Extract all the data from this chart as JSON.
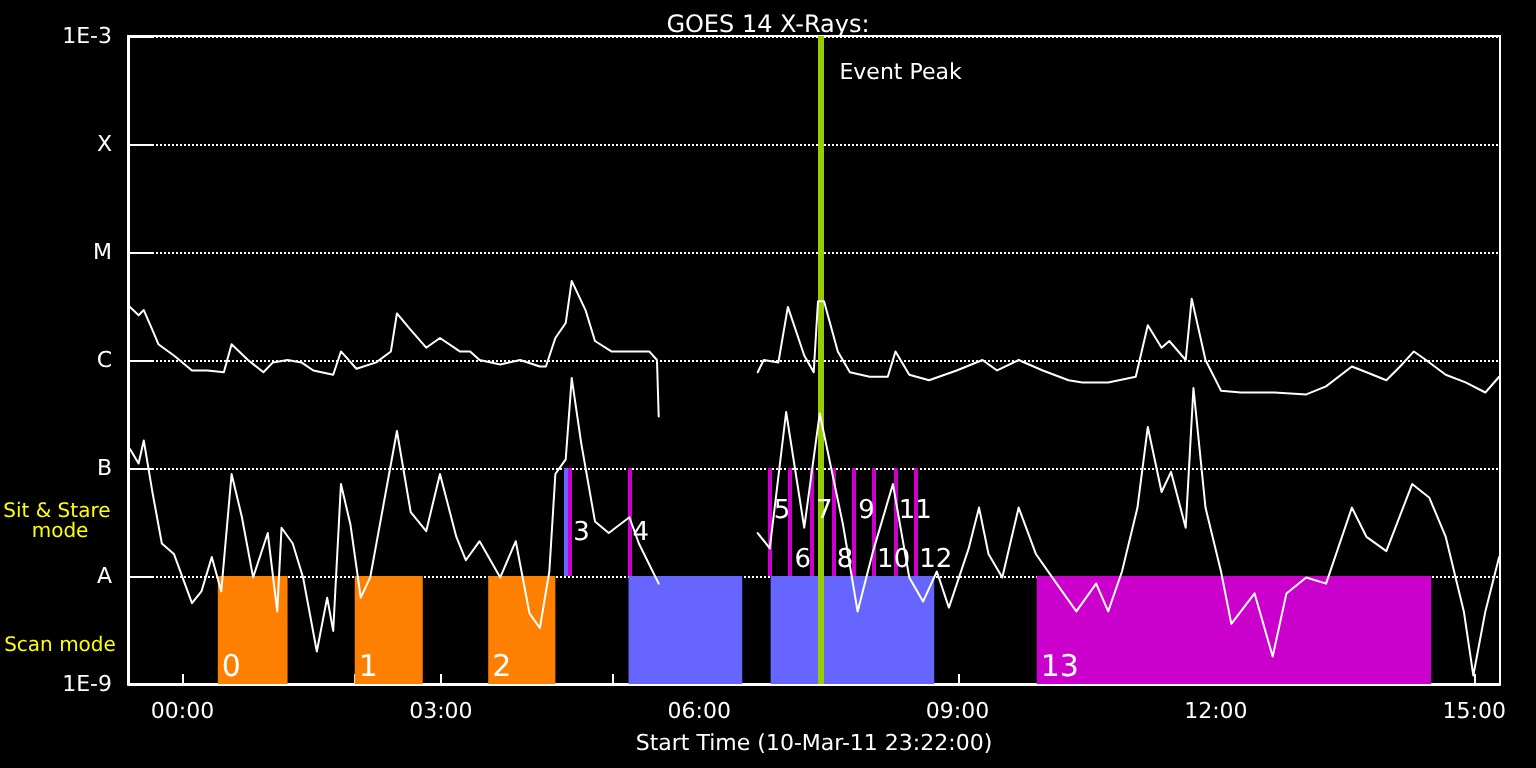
{
  "chart_data": {
    "type": "line",
    "title": "GOES 14 X-Rays:",
    "xlabel": "Start Time (10-Mar-11 23:22:00)",
    "annotations": [
      "Sit & Stare mode",
      "Scan mode",
      {
        "text": "3",
        "x": 4.49,
        "y": 2.5e-08
      },
      {
        "text": "4",
        "x": 5.18,
        "y": 2.5e-08
      },
      {
        "text": "5",
        "x": 6.82,
        "y": 4e-08
      },
      {
        "text": "6",
        "x": 7.06,
        "y": 1.4e-08
      },
      {
        "text": "7",
        "x": 7.31,
        "y": 4e-08
      },
      {
        "text": "8",
        "x": 7.55,
        "y": 1.4e-08
      },
      {
        "text": "9",
        "x": 7.8,
        "y": 4e-08
      },
      {
        "text": "10",
        "x": 8.02,
        "y": 1.4e-08
      },
      {
        "text": "11",
        "x": 8.27,
        "y": 4e-08
      },
      {
        "text": "12",
        "x": 8.51,
        "y": 1.4e-08
      }
    ],
    "xlim": [
      -0.633,
      15.3
    ],
    "xticks": [
      {
        "value": 0,
        "label": "00:00"
      },
      {
        "value": 1,
        "label": null
      },
      {
        "value": 2,
        "label": null
      },
      {
        "value": 3,
        "label": "03:00"
      },
      {
        "value": 4,
        "label": null
      },
      {
        "value": 5,
        "label": null
      },
      {
        "value": 6,
        "label": "06:00"
      },
      {
        "value": 7,
        "label": null
      },
      {
        "value": 8,
        "label": null
      },
      {
        "value": 9,
        "label": "09:00"
      },
      {
        "value": 10,
        "label": null
      },
      {
        "value": 11,
        "label": null
      },
      {
        "value": 12,
        "label": "12:00"
      },
      {
        "value": 13,
        "label": null
      },
      {
        "value": 14,
        "label": null
      },
      {
        "value": 15,
        "label": "15:00"
      }
    ],
    "ylim": [
      1e-09,
      0.001
    ],
    "yticks": [
      {
        "value": 1e-09,
        "label": "1E-9"
      },
      {
        "value": 1e-08,
        "label": "A"
      },
      {
        "value": 1e-07,
        "label": "B"
      },
      {
        "value": 1e-06,
        "label": "C"
      },
      {
        "value": 1e-05,
        "label": "M"
      },
      {
        "value": 0.0001,
        "label": "X"
      },
      {
        "value": 0.001,
        "label": "1E-3"
      }
    ],
    "log": true,
    "grid": "y",
    "marker": "none",
    "line_style": "solid",
    "series": [
      {
        "color": "#ffffff",
        "x": [
          -0.61,
          -0.51,
          -0.45,
          -0.35,
          -0.28,
          -0.1,
          0.11,
          0.29,
          0.48,
          0.57,
          0.76,
          0.94,
          1.05,
          1.22,
          1.38,
          1.52,
          1.75,
          1.84,
          2.02,
          2.25,
          2.42,
          2.49,
          2.65,
          2.83,
          2.99,
          3.22,
          3.34,
          3.45,
          3.69,
          3.92,
          4.15,
          4.22,
          4.33,
          4.45,
          4.52,
          4.68,
          4.79,
          4.98,
          5.19,
          5.42,
          5.51,
          5.53,
          5.8,
          6.68,
          6.75,
          6.92,
          7.03,
          7.22,
          7.33,
          7.38,
          7.45,
          7.61,
          7.75,
          7.98,
          8.19,
          8.28,
          8.44,
          8.67,
          8.99,
          9.29,
          9.46,
          9.71,
          9.99,
          10.29,
          10.45,
          10.75,
          11.07,
          11.21,
          11.37,
          11.46,
          11.65,
          11.72,
          11.88,
          12.06,
          12.29,
          12.68,
          13.05,
          13.28,
          13.58,
          13.75,
          13.98,
          14.14,
          14.3,
          14.44,
          14.67,
          14.9,
          15.13,
          15.29
        ],
        "values": [
          3.1e-06,
          2.6e-06,
          2.9e-06,
          1.9e-06,
          1.4e-06,
          1.1e-06,
          8e-07,
          8e-07,
          7.7e-07,
          1.4e-06,
          1e-06,
          7.7e-07,
          9.5e-07,
          1e-06,
          9.5e-07,
          8e-07,
          7.3e-07,
          1.2e-06,
          8.3e-07,
          9.5e-07,
          1.2e-06,
          2.7e-06,
          1.9e-06,
          1.3e-06,
          1.6e-06,
          1.2e-06,
          1.2e-06,
          1e-06,
          9.1e-07,
          1e-06,
          8.7e-07,
          8.7e-07,
          1.6e-06,
          2.2e-06,
          5.4e-06,
          2.9e-06,
          1.5e-06,
          1.2e-06,
          1.2e-06,
          1.2e-06,
          1e-06,
          3e-07,
          null,
          7.7e-07,
          1e-06,
          9.5e-07,
          3.1e-06,
          1.1e-06,
          7.7e-07,
          3.5e-06,
          3.5e-06,
          1.2e-06,
          7.7e-07,
          7e-07,
          7e-07,
          1.2e-06,
          7.3e-07,
          6.5e-07,
          8e-07,
          1e-06,
          8e-07,
          1e-06,
          8e-07,
          6.5e-07,
          6.2e-07,
          6.2e-07,
          7e-07,
          2.1e-06,
          1.3e-06,
          1.5e-06,
          1e-06,
          3.7e-06,
          1e-06,
          5.2e-07,
          5e-07,
          5e-07,
          4.8e-07,
          5.7e-07,
          8.7e-07,
          7.7e-07,
          6.5e-07,
          8.7e-07,
          1.2e-06,
          1e-06,
          7.3e-07,
          6.2e-07,
          5e-07,
          7e-07
        ]
      },
      {
        "color": "#ffffff",
        "x": [
          -0.61,
          -0.51,
          -0.45,
          -0.35,
          -0.24,
          -0.1,
          0.11,
          0.22,
          0.34,
          0.45,
          0.57,
          0.69,
          0.82,
          0.99,
          1.1,
          1.15,
          1.28,
          1.4,
          1.56,
          1.68,
          1.75,
          1.84,
          1.95,
          2.07,
          2.18,
          2.49,
          2.65,
          2.83,
          2.99,
          3.18,
          3.29,
          3.45,
          3.69,
          3.87,
          4.03,
          4.15,
          4.26,
          4.33,
          4.45,
          4.52,
          4.63,
          4.79,
          4.95,
          5.19,
          5.3,
          5.53,
          5.8,
          6.68,
          6.82,
          7.01,
          7.22,
          7.4,
          7.67,
          7.84,
          8.02,
          8.25,
          8.44,
          8.6,
          8.76,
          8.9,
          9.13,
          9.25,
          9.36,
          9.52,
          9.71,
          9.91,
          10.1,
          10.38,
          10.61,
          10.75,
          10.91,
          11.09,
          11.21,
          11.37,
          11.48,
          11.65,
          11.74,
          11.88,
          12.06,
          12.18,
          12.45,
          12.66,
          12.82,
          13.05,
          13.28,
          13.58,
          13.75,
          13.98,
          14.28,
          14.48,
          14.67,
          14.88,
          14.99,
          15.13,
          15.29
        ],
        "values": [
          1.5e-07,
          1.1e-07,
          1.8e-07,
          6e-08,
          2e-08,
          1.6e-08,
          5.6e-09,
          7.2e-09,
          1.5e-08,
          7.2e-09,
          8.8e-08,
          3.5e-08,
          9.7e-09,
          2.5e-08,
          4.7e-09,
          2.8e-08,
          2e-08,
          9.7e-09,
          2e-09,
          6.3e-09,
          3.1e-09,
          7.1e-08,
          3e-08,
          6.3e-09,
          9.7e-09,
          2.2e-07,
          3.9e-08,
          2.6e-08,
          8.8e-08,
          2.3e-08,
          1.4e-08,
          2.1e-08,
          9.7e-09,
          2.1e-08,
          4.5e-09,
          3.3e-09,
          1.1e-08,
          8.8e-08,
          1.2e-07,
          6.8e-07,
          1.7e-07,
          3.2e-08,
          2.5e-08,
          3.5e-08,
          2e-08,
          8.5e-09,
          null,
          2.5e-08,
          1.8e-08,
          3.3e-07,
          2.8e-08,
          3.2e-07,
          3e-08,
          4.7e-09,
          1.7e-08,
          7.1e-08,
          9.7e-09,
          5.8e-09,
          1.1e-08,
          5.1e-09,
          1.8e-08,
          4.3e-08,
          1.6e-08,
          9.7e-09,
          4.3e-08,
          1.6e-08,
          9.7e-09,
          4.7e-09,
          8.5e-09,
          4.7e-09,
          1.1e-08,
          4.3e-08,
          2.4e-07,
          6e-08,
          9.2e-08,
          2.8e-08,
          5.5e-07,
          4.3e-08,
          1.1e-08,
          3.6e-09,
          6.9e-09,
          1.8e-09,
          6.9e-09,
          9.7e-09,
          8.5e-09,
          4.3e-08,
          2.3e-08,
          1.7e-08,
          7.1e-08,
          5.3e-08,
          2.3e-08,
          4.7e-09,
          1.2e-09,
          4.7e-09,
          1.5e-08
        ]
      }
    ],
    "ref_lines": [
      {
        "axis": "x",
        "value": 7.42,
        "label": "Event Peak",
        "color": "#99cc00"
      },
      {
        "axis": "x",
        "value": 4.45,
        "color": "#6666ff"
      },
      {
        "axis": "x",
        "value": 4.49,
        "color": "#cc00cc"
      },
      {
        "axis": "x",
        "value": 5.18,
        "color": "#cc00cc"
      },
      {
        "axis": "x",
        "value": 6.82,
        "color": "#cc00cc"
      },
      {
        "axis": "x",
        "value": 7.06,
        "color": "#cc00cc"
      },
      {
        "axis": "x",
        "value": 7.31,
        "color": "#cc00cc"
      },
      {
        "axis": "x",
        "value": 7.55,
        "color": "#cc00cc"
      },
      {
        "axis": "x",
        "value": 7.8,
        "color": "#cc00cc"
      },
      {
        "axis": "x",
        "value": 8.02,
        "color": "#cc00cc"
      },
      {
        "axis": "x",
        "value": 8.27,
        "color": "#cc00cc"
      },
      {
        "axis": "x",
        "value": 8.51,
        "color": "#cc00cc"
      }
    ],
    "bands": [
      {
        "axis": "x",
        "from": 0.41,
        "to": 1.22,
        "label": "0",
        "color": "#ff8000"
      },
      {
        "axis": "x",
        "from": 2.0,
        "to": 2.79,
        "label": "1",
        "color": "#ff8000"
      },
      {
        "axis": "x",
        "from": 3.55,
        "to": 4.33,
        "label": "2",
        "color": "#ff8000"
      },
      {
        "axis": "x",
        "from": 5.18,
        "to": 6.5,
        "color": "#6666ff"
      },
      {
        "axis": "x",
        "from": 6.83,
        "to": 8.73,
        "color": "#6666ff"
      },
      {
        "axis": "x",
        "from": 9.92,
        "to": 14.5,
        "label": "13",
        "color": "#cc00cc"
      }
    ]
  }
}
